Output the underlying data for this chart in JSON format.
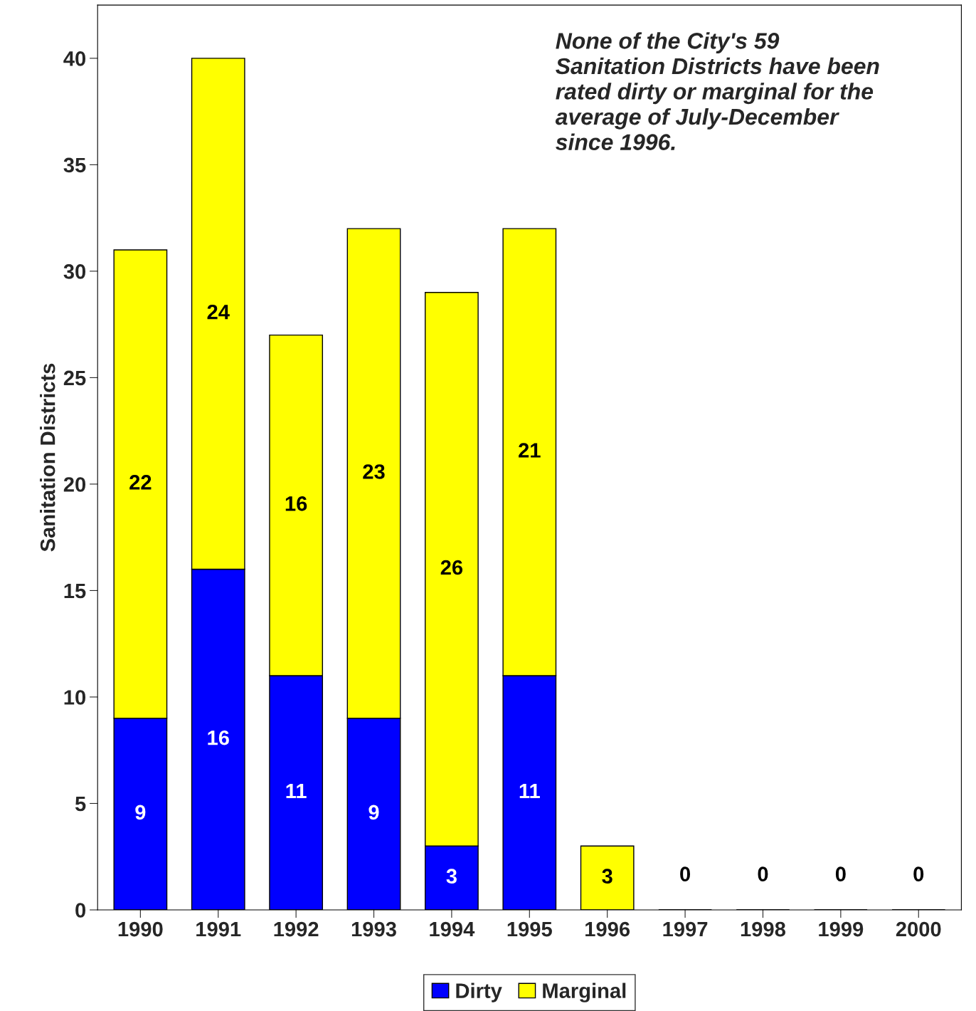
{
  "chart_data": {
    "type": "bar",
    "stacked": true,
    "ylabel": "Sanitation Districts",
    "categories": [
      "1990",
      "1991",
      "1992",
      "1993",
      "1994",
      "1995",
      "1996",
      "1997",
      "1998",
      "1999",
      "2000"
    ],
    "series": [
      {
        "name": "Dirty",
        "color": "#0000ff",
        "values": [
          9,
          16,
          11,
          9,
          3,
          11,
          0,
          0,
          0,
          0,
          0
        ],
        "value_labels": [
          "9",
          "16",
          "11",
          "9",
          "3",
          "11",
          null,
          null,
          null,
          null,
          null
        ]
      },
      {
        "name": "Marginal",
        "color": "#ffff00",
        "values": [
          22,
          24,
          16,
          23,
          26,
          21,
          3,
          0,
          0,
          0,
          0
        ],
        "value_labels": [
          "22",
          "24",
          "16",
          "23",
          "26",
          "21",
          "3",
          "0",
          "0",
          "0",
          "0"
        ]
      }
    ],
    "ylim": [
      0,
      42.5
    ],
    "yticks": [
      0,
      5,
      10,
      15,
      20,
      25,
      30,
      35,
      40
    ],
    "grid": false,
    "legend": "bottom",
    "annotations": [
      "None of the City's 59\nSanitation Districts have been\nrated dirty or marginal for the\naverage of July-December\nsince 1996."
    ]
  }
}
